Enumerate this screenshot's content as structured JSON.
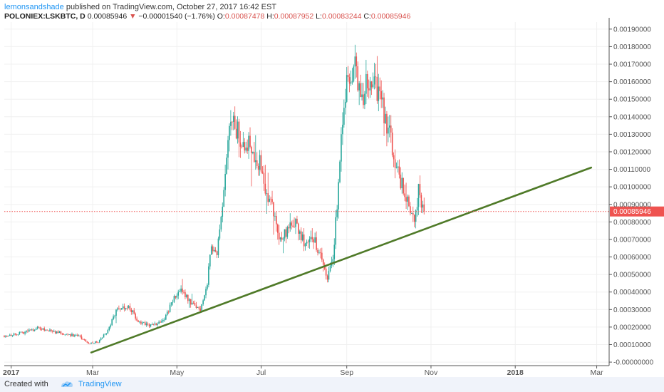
{
  "header": {
    "author": "lemonsandshade",
    "published_text": "published on TradingView.com, October 27, 2017 16:42 EST",
    "symbol": "POLONIEX:LSKBTC, D",
    "last": "0.00085946",
    "change": "−0.00001540 (−1.76%)",
    "o_label": "O:",
    "o_value": "0.00087478",
    "h_label": "H:",
    "h_value": "0.00087952",
    "l_label": "L:",
    "l_value": "0.00083244",
    "c_label": "C:",
    "c_value": "0.00085946"
  },
  "footer": {
    "created_with": "Created with",
    "brand": "TradingView"
  },
  "colors": {
    "up": "#26a69a",
    "down": "#ef5350",
    "trend": "#4f7a28",
    "price_line": "#ef5350",
    "grid": "#f0f0f0",
    "axis_text": "#555555",
    "accent": "#2196f3"
  },
  "chart_data": {
    "type": "candlestick",
    "symbol": "POLONIEX:LSKBTC",
    "interval": "D",
    "x_range": [
      "2016-12-27",
      "2018-03-10"
    ],
    "y_range": [
      -2e-05,
      0.00194
    ],
    "y_ticks": [
      "0.00190000",
      "0.00180000",
      "0.00170000",
      "0.00160000",
      "0.00150000",
      "0.00140000",
      "0.00130000",
      "0.00120000",
      "0.00110000",
      "0.00100000",
      "0.00090000",
      "0.00080000",
      "0.00070000",
      "0.00060000",
      "0.00050000",
      "0.00040000",
      "0.00030000",
      "0.00020000",
      "0.00010000",
      "-0.00000000"
    ],
    "x_ticks": [
      {
        "label": "2017",
        "date": "2017-01-01"
      },
      {
        "label": "Mar",
        "date": "2017-03-01"
      },
      {
        "label": "May",
        "date": "2017-05-01"
      },
      {
        "label": "Jul",
        "date": "2017-07-01"
      },
      {
        "label": "Sep",
        "date": "2017-09-01"
      },
      {
        "label": "Nov",
        "date": "2017-11-01"
      },
      {
        "label": "2018",
        "date": "2018-01-01"
      },
      {
        "label": "Mar",
        "date": "2018-03-01"
      }
    ],
    "last_price": 0.00085946,
    "last_price_label": "0.00085946",
    "grid": true,
    "trendline": {
      "from": {
        "date": "2017-02-28",
        "value": 5.5e-05
      },
      "to": {
        "date": "2018-02-25",
        "value": 0.00111
      }
    },
    "price_path": [
      [
        "2016-12-27",
        0.00015
      ],
      [
        "2017-01-08",
        0.000165
      ],
      [
        "2017-01-20",
        0.000195
      ],
      [
        "2017-02-03",
        0.00017
      ],
      [
        "2017-02-18",
        0.00015
      ],
      [
        "2017-02-26",
        0.00011
      ],
      [
        "2017-03-05",
        0.000115
      ],
      [
        "2017-03-12",
        0.00018
      ],
      [
        "2017-03-19",
        0.00031
      ],
      [
        "2017-03-27",
        0.00032
      ],
      [
        "2017-04-04",
        0.00022
      ],
      [
        "2017-04-14",
        0.00021
      ],
      [
        "2017-04-22",
        0.00025
      ],
      [
        "2017-04-30",
        0.00038
      ],
      [
        "2017-05-05",
        0.00041
      ],
      [
        "2017-05-12",
        0.00033
      ],
      [
        "2017-05-18",
        0.0003
      ],
      [
        "2017-05-23",
        0.00045
      ],
      [
        "2017-05-26",
        0.00068
      ],
      [
        "2017-05-30",
        0.00062
      ],
      [
        "2017-06-03",
        0.00085
      ],
      [
        "2017-06-07",
        0.00125
      ],
      [
        "2017-06-10",
        0.00137
      ],
      [
        "2017-06-16",
        0.00128
      ],
      [
        "2017-06-23",
        0.00125
      ],
      [
        "2017-06-30",
        0.00113
      ],
      [
        "2017-07-04",
        0.00098
      ],
      [
        "2017-07-09",
        0.0009
      ],
      [
        "2017-07-14",
        0.0007
      ],
      [
        "2017-07-20",
        0.00075
      ],
      [
        "2017-07-26",
        0.00079
      ],
      [
        "2017-08-01",
        0.00068
      ],
      [
        "2017-08-06",
        0.00074
      ],
      [
        "2017-08-13",
        0.0006
      ],
      [
        "2017-08-18",
        0.00048
      ],
      [
        "2017-08-22",
        0.0006
      ],
      [
        "2017-08-25",
        0.0009
      ],
      [
        "2017-08-28",
        0.00132
      ],
      [
        "2017-08-31",
        0.00155
      ],
      [
        "2017-09-03",
        0.0016
      ],
      [
        "2017-09-07",
        0.00168
      ],
      [
        "2017-09-12",
        0.00152
      ],
      [
        "2017-09-17",
        0.0016
      ],
      [
        "2017-09-22",
        0.00158
      ],
      [
        "2017-09-27",
        0.00145
      ],
      [
        "2017-10-02",
        0.0013
      ],
      [
        "2017-10-07",
        0.00112
      ],
      [
        "2017-10-12",
        0.00098
      ],
      [
        "2017-10-16",
        0.00088
      ],
      [
        "2017-10-20",
        0.00078
      ],
      [
        "2017-10-23",
        0.00098
      ],
      [
        "2017-10-27",
        0.000859
      ]
    ]
  }
}
